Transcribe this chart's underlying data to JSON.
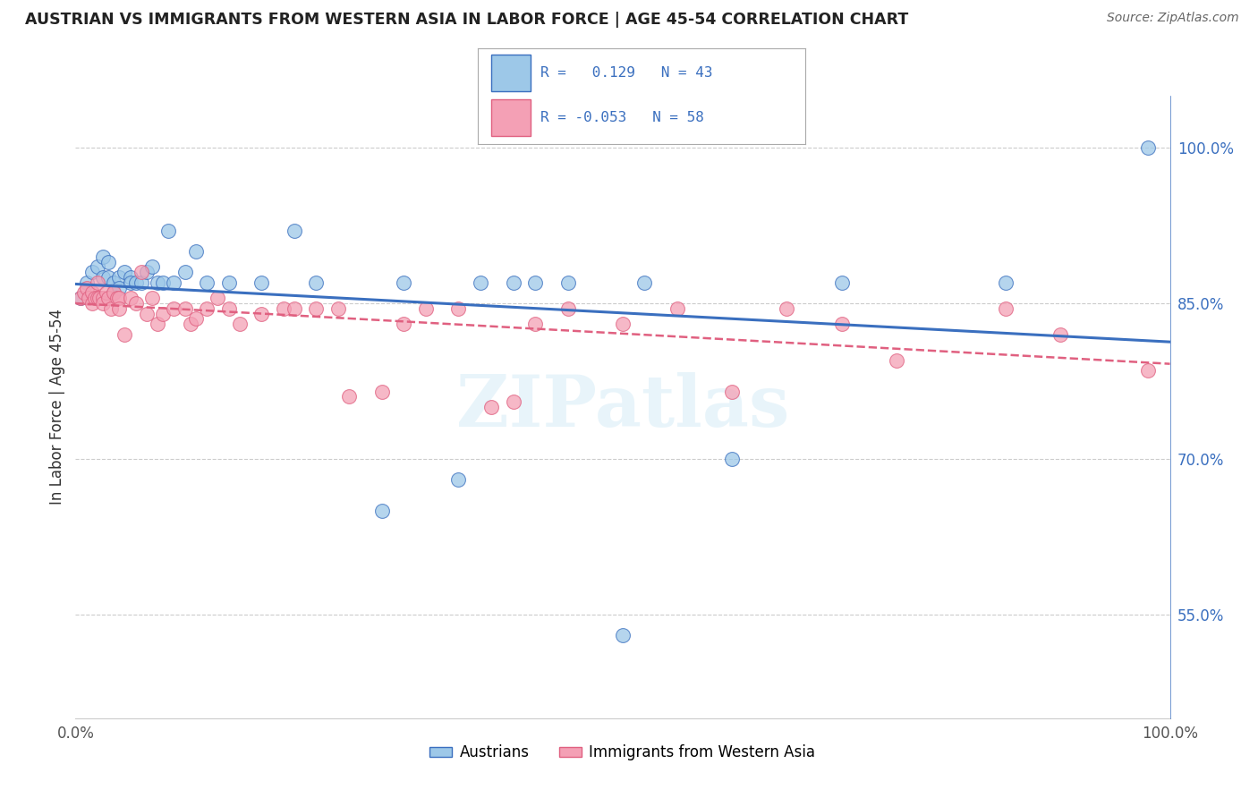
{
  "title": "AUSTRIAN VS IMMIGRANTS FROM WESTERN ASIA IN LABOR FORCE | AGE 45-54 CORRELATION CHART",
  "source": "Source: ZipAtlas.com",
  "ylabel": "In Labor Force | Age 45-54",
  "legend_blue_R": 0.129,
  "legend_blue_N": 43,
  "legend_blue_label": "Austrians",
  "legend_pink_R": -0.053,
  "legend_pink_N": 58,
  "legend_pink_label": "Immigrants from Western Asia",
  "blue_color": "#9dc8e8",
  "pink_color": "#f4a0b5",
  "blue_line_color": "#3a6fbf",
  "pink_line_color": "#e06080",
  "right_yticks": [
    1.0,
    0.85,
    0.7,
    0.55
  ],
  "right_yticklabels": [
    "100.0%",
    "85.0%",
    "70.0%",
    "55.0%"
  ],
  "blue_x": [
    0.005,
    0.01,
    0.015,
    0.02,
    0.025,
    0.025,
    0.03,
    0.03,
    0.035,
    0.035,
    0.04,
    0.04,
    0.045,
    0.05,
    0.05,
    0.055,
    0.06,
    0.065,
    0.07,
    0.075,
    0.08,
    0.085,
    0.09,
    0.1,
    0.11,
    0.12,
    0.14,
    0.17,
    0.2,
    0.22,
    0.28,
    0.3,
    0.35,
    0.37,
    0.4,
    0.42,
    0.45,
    0.5,
    0.52,
    0.6,
    0.7,
    0.85,
    0.98
  ],
  "blue_y": [
    0.855,
    0.87,
    0.88,
    0.885,
    0.895,
    0.875,
    0.89,
    0.875,
    0.87,
    0.86,
    0.875,
    0.865,
    0.88,
    0.875,
    0.87,
    0.87,
    0.87,
    0.88,
    0.885,
    0.87,
    0.87,
    0.92,
    0.87,
    0.88,
    0.9,
    0.87,
    0.87,
    0.87,
    0.92,
    0.87,
    0.65,
    0.87,
    0.68,
    0.87,
    0.87,
    0.87,
    0.87,
    0.53,
    0.87,
    0.7,
    0.87,
    0.87,
    1.0
  ],
  "pink_x": [
    0.005,
    0.008,
    0.01,
    0.012,
    0.015,
    0.015,
    0.018,
    0.02,
    0.02,
    0.022,
    0.025,
    0.025,
    0.028,
    0.03,
    0.032,
    0.035,
    0.038,
    0.04,
    0.04,
    0.045,
    0.05,
    0.055,
    0.06,
    0.065,
    0.07,
    0.075,
    0.08,
    0.09,
    0.1,
    0.105,
    0.11,
    0.12,
    0.13,
    0.14,
    0.15,
    0.17,
    0.19,
    0.2,
    0.22,
    0.24,
    0.25,
    0.28,
    0.3,
    0.32,
    0.35,
    0.38,
    0.4,
    0.42,
    0.45,
    0.5,
    0.55,
    0.6,
    0.65,
    0.7,
    0.75,
    0.85,
    0.9,
    0.98
  ],
  "pink_y": [
    0.855,
    0.86,
    0.865,
    0.855,
    0.86,
    0.85,
    0.855,
    0.855,
    0.87,
    0.855,
    0.855,
    0.85,
    0.86,
    0.855,
    0.845,
    0.86,
    0.855,
    0.855,
    0.845,
    0.82,
    0.855,
    0.85,
    0.88,
    0.84,
    0.855,
    0.83,
    0.84,
    0.845,
    0.845,
    0.83,
    0.835,
    0.845,
    0.855,
    0.845,
    0.83,
    0.84,
    0.845,
    0.845,
    0.845,
    0.845,
    0.76,
    0.765,
    0.83,
    0.845,
    0.845,
    0.75,
    0.755,
    0.83,
    0.845,
    0.83,
    0.845,
    0.765,
    0.845,
    0.83,
    0.795,
    0.845,
    0.82,
    0.785
  ]
}
